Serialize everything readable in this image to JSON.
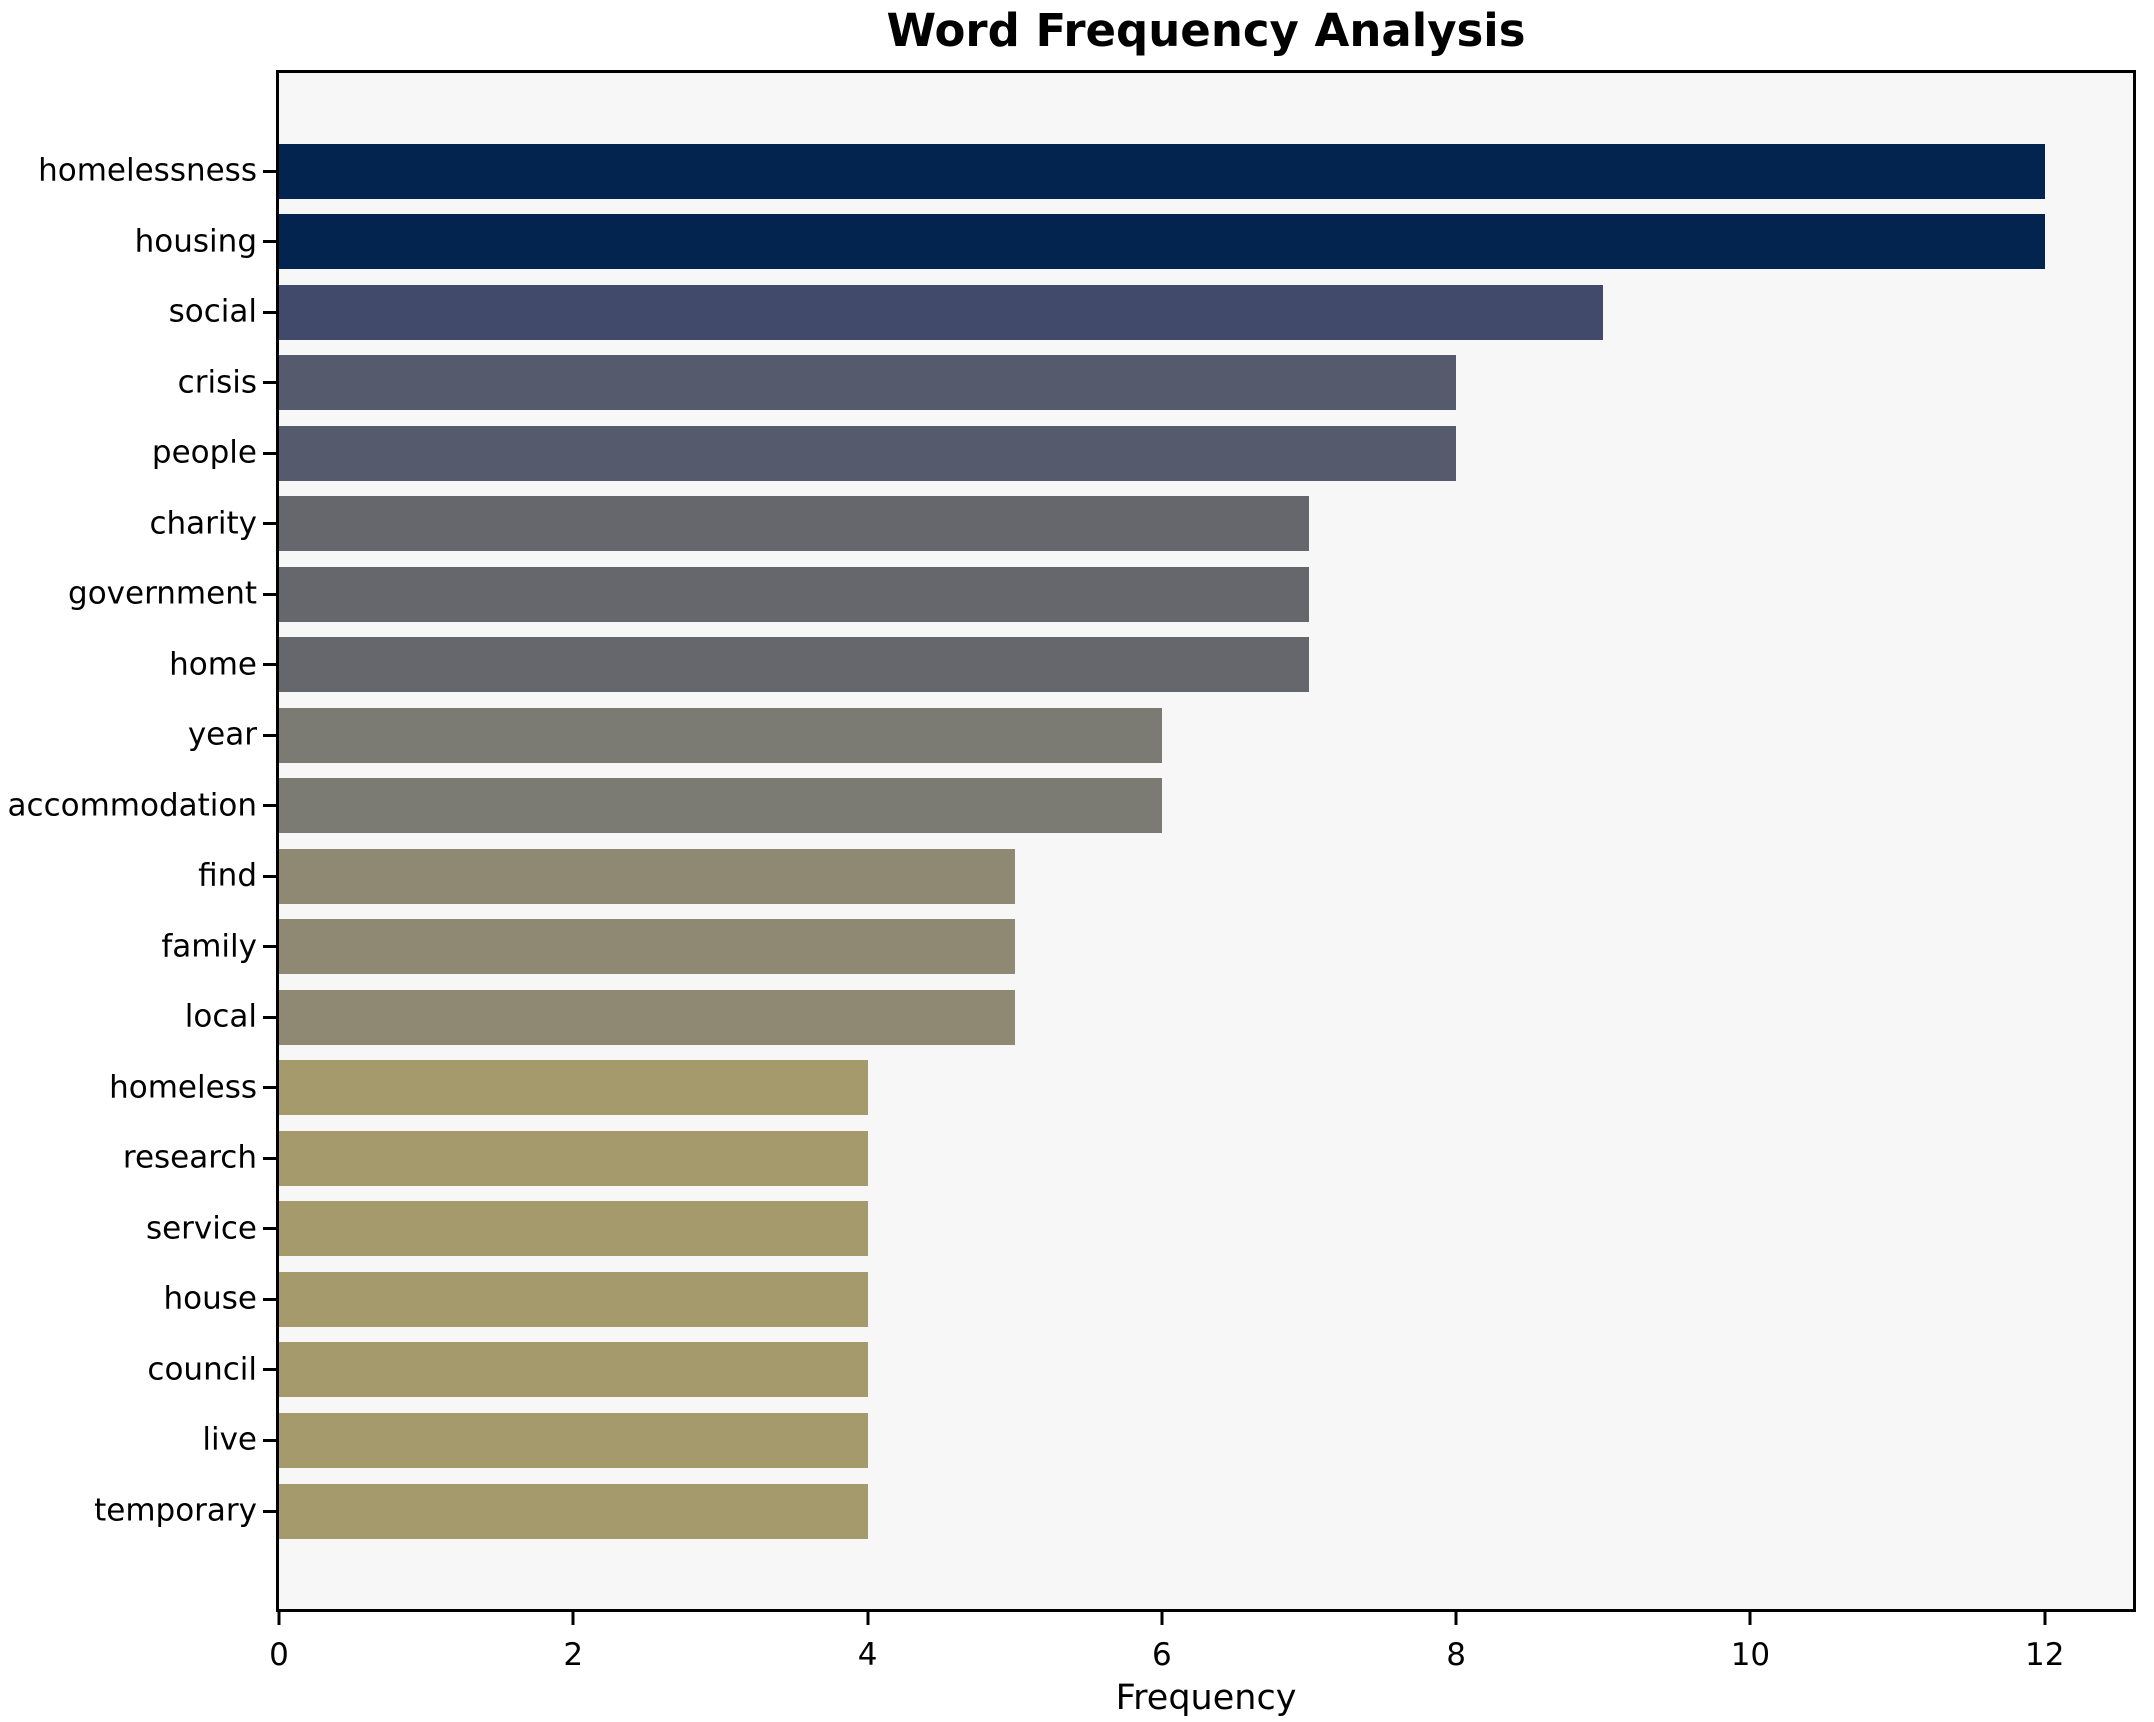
{
  "chart_data": {
    "type": "bar",
    "orientation": "horizontal",
    "title": "Word Frequency Analysis",
    "xlabel": "Frequency",
    "ylabel": "",
    "categories": [
      "homelessness",
      "housing",
      "social",
      "crisis",
      "people",
      "charity",
      "government",
      "home",
      "year",
      "accommodation",
      "find",
      "family",
      "local",
      "homeless",
      "research",
      "service",
      "house",
      "council",
      "live",
      "temporary"
    ],
    "values": [
      12,
      12,
      9,
      8,
      8,
      7,
      7,
      7,
      6,
      6,
      5,
      5,
      5,
      4,
      4,
      4,
      4,
      4,
      4,
      4
    ],
    "bar_colors": [
      "#03244F",
      "#03244F",
      "#424A6B",
      "#555B6C",
      "#555B6C",
      "#66676D",
      "#66676D",
      "#66676D",
      "#7B7A73",
      "#7B7A73",
      "#8F8973",
      "#8F8973",
      "#8F8973",
      "#A49A6C",
      "#A49A6C",
      "#A49A6C",
      "#A49A6C",
      "#A49A6C",
      "#A49A6C",
      "#A49A6C"
    ],
    "x_ticks": [
      0,
      2,
      4,
      6,
      8,
      10,
      12
    ],
    "xlim": [
      0,
      12.6
    ],
    "grid": false,
    "legend": "none",
    "plot_bg": "#F7F7F8",
    "figure_bg": "#FFFFFF",
    "spine_color": "#000000"
  }
}
